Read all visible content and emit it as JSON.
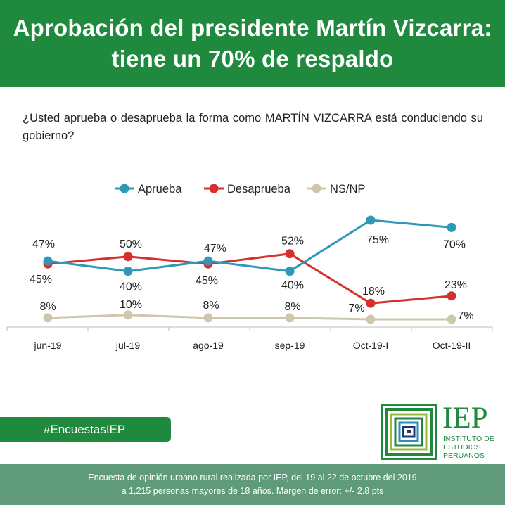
{
  "header": {
    "title_line1": "Aprobación del presidente Martín Vizcarra:",
    "title_line2": "tiene un 70% de respaldo"
  },
  "question": "¿Usted aprueba o desaprueba la forma como MARTÍN VIZCARRA está conduciendo su gobierno?",
  "chart_data": {
    "type": "line",
    "categories": [
      "jun-19",
      "jul-19",
      "ago-19",
      "sep-19",
      "Oct-19-I",
      "Oct-19-II"
    ],
    "series": [
      {
        "name": "Aprueba",
        "color": "#2e98b7",
        "values": [
          47,
          40,
          47,
          40,
          75,
          70
        ],
        "labels": [
          "47%",
          "40%",
          "47%",
          "40%",
          "75%",
          "70%"
        ]
      },
      {
        "name": "Desaprueba",
        "color": "#d7302b",
        "values": [
          45,
          50,
          45,
          52,
          18,
          23
        ],
        "labels": [
          "45%",
          "50%",
          "45%",
          "52%",
          "18%",
          "23%"
        ]
      },
      {
        "name": "NS/NP",
        "color": "#cfc7ab",
        "values": [
          8,
          10,
          8,
          8,
          7,
          7
        ],
        "labels": [
          "8%",
          "10%",
          "8%",
          "8%",
          "7%",
          "7%"
        ]
      }
    ],
    "legend_position": "top-center",
    "grid": false
  },
  "hashtag": "#EncuestasIEP",
  "logo": {
    "abbr": "IEP",
    "name_line1": "INSTITUTO DE",
    "name_line2": "ESTUDIOS",
    "name_line3": "PERUANOS",
    "color": "#1f8a3e"
  },
  "footer": {
    "line1": "Encuesta de opinión urbano rural realizada por IEP, del 19 al 22 de octubre del 2019",
    "line2": "a 1,215 personas mayores de 18 años. Margen de error: +/- 2.8 pts"
  }
}
